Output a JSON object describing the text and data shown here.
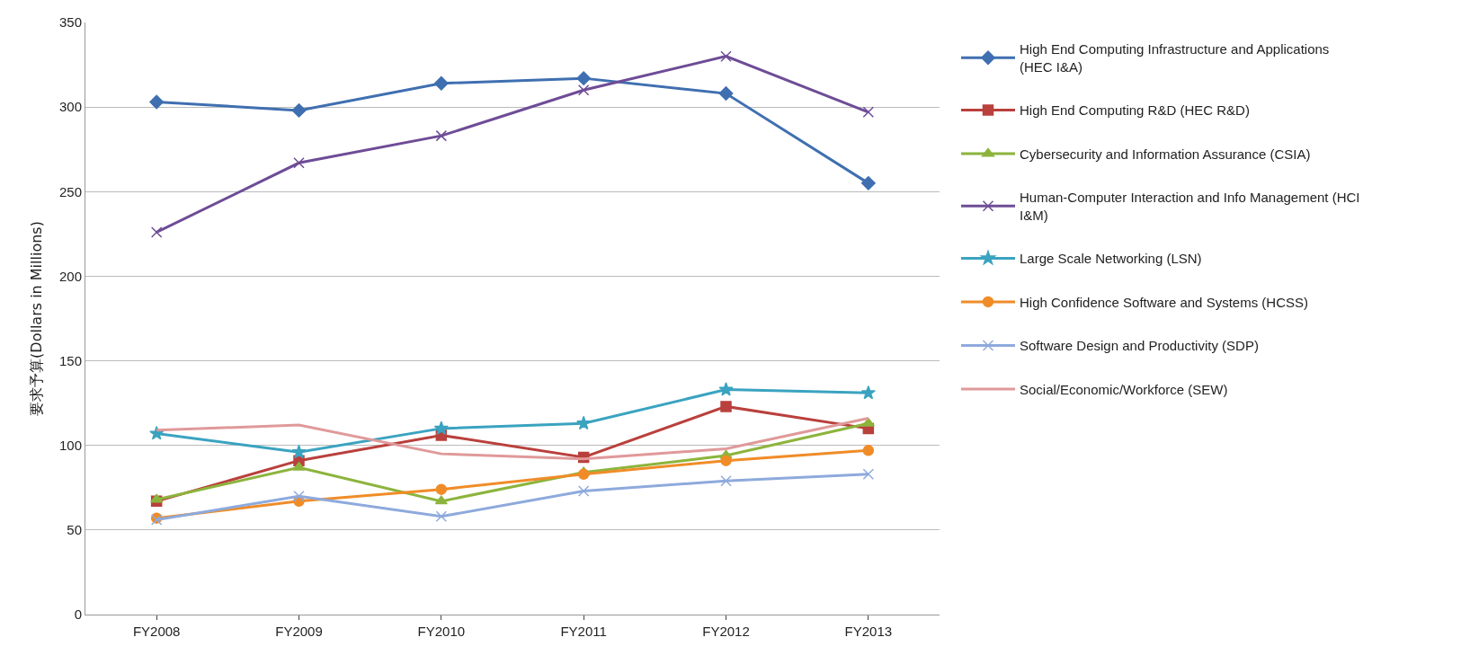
{
  "chart_data": {
    "type": "line",
    "ylabel": "要求予算(Dollars in Millions)",
    "categories": [
      "FY2008",
      "FY2009",
      "FY2010",
      "FY2011",
      "FY2012",
      "FY2013"
    ],
    "ylim": [
      0,
      350
    ],
    "yticks": [
      0,
      50,
      100,
      150,
      200,
      250,
      300,
      350
    ],
    "grid": "y",
    "legend": "right",
    "line_style": "solid",
    "series": [
      {
        "name": "High End Computing Infrastructure and Applications (HEC I&A)",
        "color": "#3f6fb0",
        "marker": "diamond",
        "values": [
          303,
          298,
          314,
          317,
          308,
          255
        ]
      },
      {
        "name": "High End Computing R&D (HEC R&D)",
        "color": "#b9403c",
        "marker": "square",
        "values": [
          67,
          91,
          106,
          93,
          123,
          110
        ]
      },
      {
        "name": "Cybersecurity and Information Assurance (CSIA)",
        "color": "#8cb43c",
        "marker": "triangle",
        "values": [
          68,
          87,
          67,
          84,
          94,
          113
        ]
      },
      {
        "name": "Human-Computer Interaction and Info Management (HCI I&M)",
        "color": "#6e4c96",
        "marker": "cross",
        "values": [
          226,
          267,
          283,
          310,
          330,
          297
        ]
      },
      {
        "name": "Large Scale Networking (LSN)",
        "color": "#3aa3c0",
        "marker": "star",
        "values": [
          107,
          96,
          110,
          113,
          133,
          131
        ]
      },
      {
        "name": "High Confidence Software and Systems (HCSS)",
        "color": "#f08c28",
        "marker": "circle",
        "values": [
          57,
          67,
          74,
          83,
          91,
          97
        ]
      },
      {
        "name": "Software Design and Productivity (SDP)",
        "color": "#8eaadc",
        "marker": "cross",
        "values": [
          56,
          70,
          58,
          73,
          79,
          83
        ]
      },
      {
        "name": "Social/Economic/Workforce (SEW)",
        "color": "#e0999a",
        "marker": "none",
        "values": [
          109,
          112,
          95,
          92,
          98,
          116
        ]
      }
    ]
  }
}
